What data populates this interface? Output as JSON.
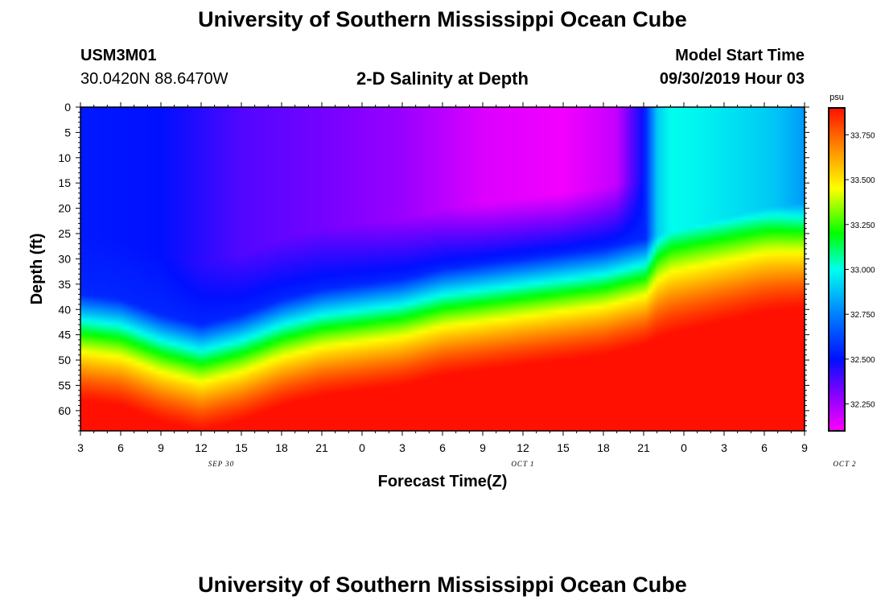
{
  "header": {
    "title_top": "University of Southern Mississippi Ocean Cube",
    "title_bottom": "University of Southern Mississippi Ocean Cube",
    "station_id": "USM3M01",
    "station_coords": "30.0420N 88.6470W",
    "model_start_label": "Model Start Time",
    "model_start_value": "09/30/2019 Hour 03"
  },
  "chart_data": {
    "type": "heatmap",
    "title": "2-D Salinity at Depth",
    "xlabel": "Forecast Time(Z)",
    "ylabel": "Depth (ft)",
    "x_ticks": [
      "3",
      "6",
      "9",
      "12",
      "15",
      "18",
      "21",
      "0",
      "3",
      "6",
      "9",
      "12",
      "15",
      "18",
      "21",
      "0",
      "3",
      "6",
      "9"
    ],
    "x_range_hours": [
      0,
      54
    ],
    "date_labels": [
      {
        "text": "SEP 30",
        "hour": 10.5
      },
      {
        "text": "OCT 1",
        "hour": 33
      },
      {
        "text": "OCT 2",
        "hour": 57
      }
    ],
    "y_ticks": [
      0,
      5,
      10,
      15,
      20,
      25,
      30,
      35,
      40,
      45,
      50,
      55,
      60
    ],
    "ylim": [
      0,
      64
    ],
    "y_inverted": true,
    "colorbar": {
      "unit": "psu",
      "min": 32.1,
      "max": 33.9,
      "ticks": [
        "33.750",
        "33.500",
        "33.250",
        "33.000",
        "32.750",
        "32.500",
        "32.250"
      ],
      "tick_values": [
        33.75,
        33.5,
        33.25,
        33.0,
        32.75,
        32.5,
        32.25
      ],
      "stops": [
        {
          "value": 32.1,
          "color": "#ff00ff"
        },
        {
          "value": 32.3,
          "color": "#8800ff"
        },
        {
          "value": 32.5,
          "color": "#0010ff"
        },
        {
          "value": 32.75,
          "color": "#0080ff"
        },
        {
          "value": 33.0,
          "color": "#00ffee"
        },
        {
          "value": 33.2,
          "color": "#00ff00"
        },
        {
          "value": 33.45,
          "color": "#ffff00"
        },
        {
          "value": 33.65,
          "color": "#ff9900"
        },
        {
          "value": 33.9,
          "color": "#ff1000"
        }
      ]
    },
    "series": [
      {
        "name": "halocline_depth_ft",
        "hours": [
          0,
          3,
          6,
          9,
          12,
          15,
          18,
          21,
          24,
          27,
          30,
          33,
          36,
          39,
          42,
          45,
          48,
          51,
          54
        ],
        "values": [
          43,
          44,
          47,
          49,
          47,
          44,
          42,
          41,
          40,
          38,
          37,
          36,
          35,
          34,
          32,
          30,
          28,
          26,
          25
        ]
      },
      {
        "name": "top_layer_salinity_psu",
        "hours": [
          0,
          6,
          12,
          18,
          24,
          30,
          36,
          40,
          42,
          43,
          44,
          46,
          48,
          50,
          52,
          54
        ],
        "values": [
          32.52,
          32.5,
          32.38,
          32.33,
          32.27,
          32.16,
          32.12,
          32.2,
          32.5,
          32.9,
          33.0,
          32.98,
          32.95,
          32.92,
          32.88,
          32.8
        ]
      }
    ]
  }
}
